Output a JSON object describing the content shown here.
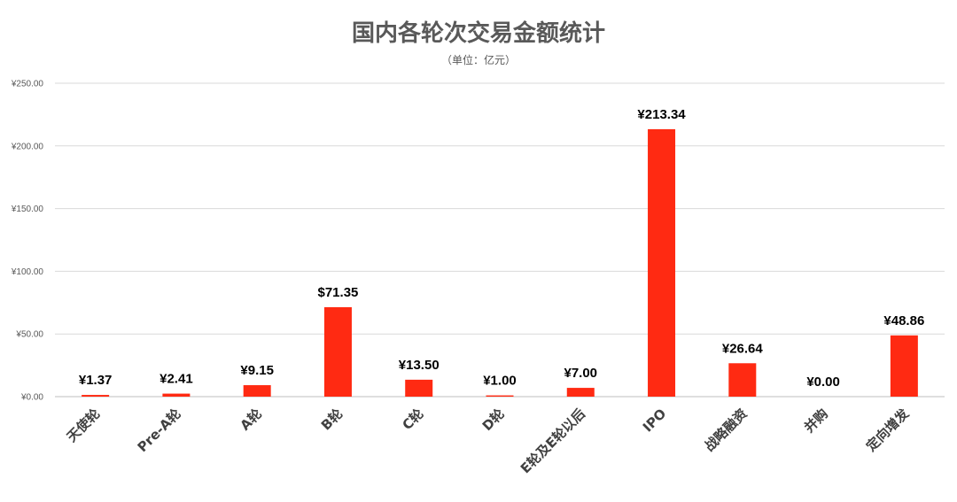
{
  "chart_data": {
    "type": "bar",
    "title": "国内各轮次交易金额统计",
    "subtitle": "（单位：亿元）",
    "categories": [
      "天使轮",
      "Pre-A轮",
      "A轮",
      "B轮",
      "C轮",
      "D轮",
      "E轮及E轮以后",
      "IPO",
      "战略融资",
      "并购",
      "定向增发"
    ],
    "values": [
      1.37,
      2.41,
      9.15,
      71.35,
      13.5,
      1.0,
      7.0,
      213.34,
      26.64,
      0.0,
      48.86
    ],
    "data_labels": [
      "¥1.37",
      "¥2.41",
      "¥9.15",
      "$71.35",
      "¥13.50",
      "¥1.00",
      "¥7.00",
      "¥213.34",
      "¥26.64",
      "¥0.00",
      "¥48.86"
    ],
    "y_tick_labels": [
      "¥0.00",
      "¥50.00",
      "¥100.00",
      "¥150.00",
      "¥200.00",
      "¥250.00"
    ],
    "ylim": [
      0,
      250
    ],
    "grid": true,
    "bar_color": "#ff2a12",
    "highlight_label_color": "#ff0000",
    "highlight_label_index": 9
  }
}
